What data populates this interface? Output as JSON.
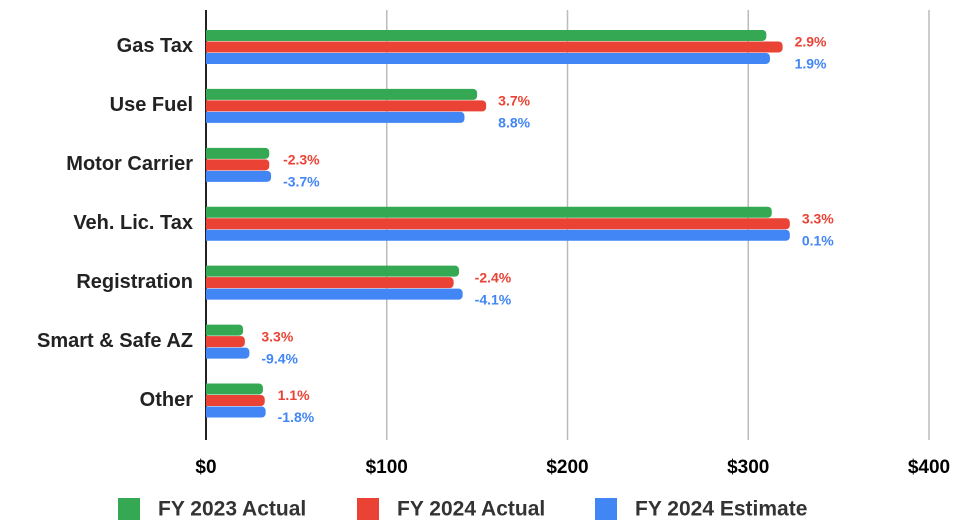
{
  "chart_data": {
    "type": "hbar",
    "categories": [
      "Gas Tax",
      "Use Fuel",
      "Motor Carrier",
      "Veh. Lic. Tax",
      "Registration",
      "Smart & Safe AZ",
      "Other"
    ],
    "series": [
      {
        "name": "FY 2023 Actual",
        "color": "#34a853",
        "values": [
          310,
          150,
          35,
          313,
          140,
          20.5,
          31.5
        ]
      },
      {
        "name": "FY 2024 Actual",
        "color": "#ea4335",
        "values": [
          319,
          155,
          35,
          323,
          137,
          21.5,
          32.5
        ],
        "annotations": [
          "2.9%",
          "3.7%",
          "-2.3%",
          "3.3%",
          "-2.4%",
          "3.3%",
          "1.1%"
        ]
      },
      {
        "name": "FY 2024 Estimate",
        "color": "#4285f4",
        "values": [
          312,
          143,
          36,
          323,
          142,
          24,
          33
        ],
        "annotations": [
          "1.9%",
          "8.8%",
          "-3.7%",
          "0.1%",
          "-4.1%",
          "-9.4%",
          "-1.8%"
        ]
      }
    ],
    "xlim": [
      0,
      400
    ],
    "xticks": [
      {
        "value": 0,
        "label": "$0"
      },
      {
        "value": 100,
        "label": "$100"
      },
      {
        "value": 200,
        "label": "$200"
      },
      {
        "value": 300,
        "label": "$300"
      },
      {
        "value": 400,
        "label": "$400"
      }
    ],
    "grid": true,
    "legend": "bottom"
  }
}
